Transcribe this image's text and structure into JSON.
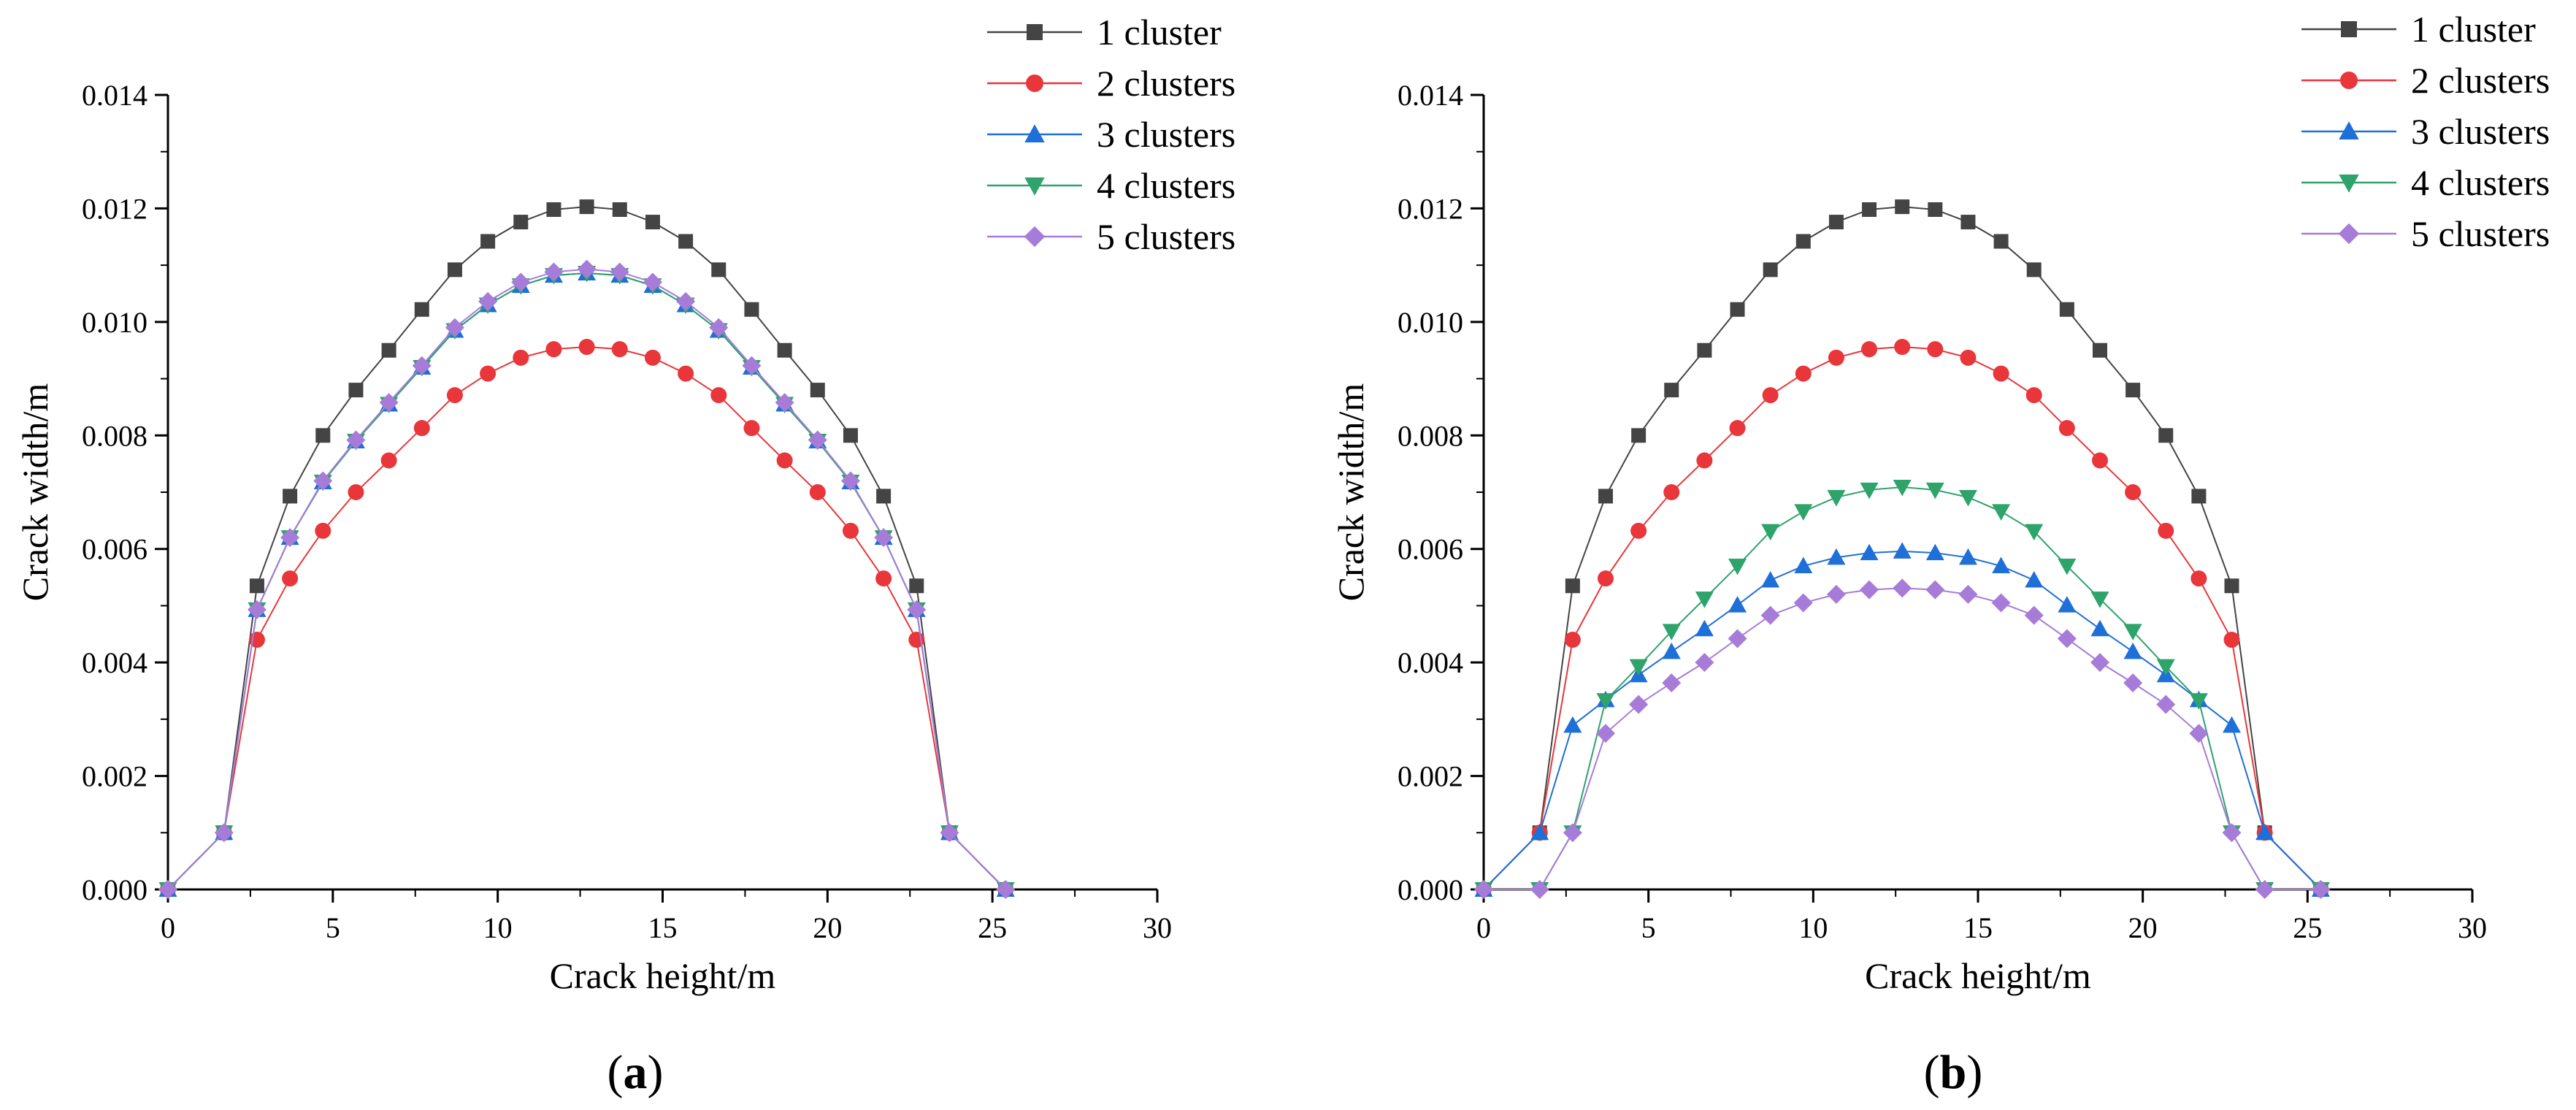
{
  "chart_data": [
    {
      "type": "line",
      "panel_label": "a",
      "xlabel": "Crack height/m",
      "ylabel": "Crack width/m",
      "xlim": [
        0,
        30
      ],
      "ylim": [
        0,
        0.014
      ],
      "x_ticks": [
        "0",
        "5",
        "10",
        "15",
        "20",
        "25",
        "30"
      ],
      "y_ticks": [
        "0.000",
        "0.002",
        "0.004",
        "0.006",
        "0.008",
        "0.010",
        "0.012",
        "0.014"
      ],
      "grid": false,
      "legend_position": "top-right",
      "series": [
        {
          "name": "1 cluster",
          "color": "#444444",
          "marker": "square",
          "x": [
            0,
            1.7,
            2.7,
            3.7,
            4.7,
            5.7,
            6.7,
            7.7,
            8.7,
            9.7,
            10.7,
            11.7,
            12.7,
            13.7,
            14.7,
            15.7,
            16.7,
            17.7,
            18.7,
            19.7,
            20.7,
            21.7,
            22.7,
            23.7,
            25.4
          ],
          "y": [
            0,
            0.001,
            0.00535,
            0.00693,
            0.008,
            0.0088,
            0.0095,
            0.01022,
            0.01092,
            0.01142,
            0.01176,
            0.01198,
            0.01203,
            0.01198,
            0.01176,
            0.01142,
            0.01092,
            0.01022,
            0.0095,
            0.0088,
            0.008,
            0.00693,
            0.00535,
            0.001,
            0
          ]
        },
        {
          "name": "2 clusters",
          "color": "#e8363a",
          "marker": "circle",
          "x": [
            0,
            1.7,
            2.7,
            3.7,
            4.7,
            5.7,
            6.7,
            7.7,
            8.7,
            9.7,
            10.7,
            11.7,
            12.7,
            13.7,
            14.7,
            15.7,
            16.7,
            17.7,
            18.7,
            19.7,
            20.7,
            21.7,
            22.7,
            23.7,
            25.4
          ],
          "y": [
            0,
            0.001,
            0.0044,
            0.00548,
            0.00632,
            0.007,
            0.00756,
            0.00813,
            0.00871,
            0.00909,
            0.00937,
            0.00952,
            0.00956,
            0.00952,
            0.00937,
            0.00909,
            0.00871,
            0.00813,
            0.00756,
            0.007,
            0.00632,
            0.00548,
            0.0044,
            0.001,
            0
          ]
        },
        {
          "name": "3 clusters",
          "color": "#1f6fd8",
          "marker": "triangle-up",
          "x": [
            0,
            1.7,
            2.7,
            3.7,
            4.7,
            5.7,
            6.7,
            7.7,
            8.7,
            9.7,
            10.7,
            11.7,
            12.7,
            13.7,
            14.7,
            15.7,
            16.7,
            17.7,
            18.7,
            19.7,
            20.7,
            21.7,
            22.7,
            23.7,
            25.4
          ],
          "y": [
            0,
            0.001,
            0.00493,
            0.0062,
            0.00718,
            0.0079,
            0.00855,
            0.0092,
            0.00985,
            0.0103,
            0.01064,
            0.01082,
            0.01086,
            0.01082,
            0.01064,
            0.0103,
            0.00985,
            0.0092,
            0.00855,
            0.0079,
            0.00718,
            0.0062,
            0.00493,
            0.001,
            0
          ]
        },
        {
          "name": "4 clusters",
          "color": "#2ea36a",
          "marker": "triangle-down",
          "x": [
            0,
            1.7,
            2.7,
            3.7,
            4.7,
            5.7,
            6.7,
            7.7,
            8.7,
            9.7,
            10.7,
            11.7,
            12.7,
            13.7,
            14.7,
            15.7,
            16.7,
            17.7,
            18.7,
            19.7,
            20.7,
            21.7,
            22.7,
            23.7,
            25.4
          ],
          "y": [
            0,
            0.001,
            0.00493,
            0.0062,
            0.00718,
            0.0079,
            0.00855,
            0.0092,
            0.00985,
            0.0103,
            0.01064,
            0.01082,
            0.01086,
            0.01082,
            0.01064,
            0.0103,
            0.00985,
            0.0092,
            0.00855,
            0.0079,
            0.00718,
            0.0062,
            0.00493,
            0.001,
            0
          ]
        },
        {
          "name": "5 clusters",
          "color": "#a77cd8",
          "marker": "diamond",
          "x": [
            0,
            1.7,
            2.7,
            3.7,
            4.7,
            5.7,
            6.7,
            7.7,
            8.7,
            9.7,
            10.7,
            11.7,
            12.7,
            13.7,
            14.7,
            15.7,
            16.7,
            17.7,
            18.7,
            19.7,
            20.7,
            21.7,
            22.7,
            23.7,
            25.4
          ],
          "y": [
            0,
            0.001,
            0.00493,
            0.0062,
            0.0072,
            0.00792,
            0.00858,
            0.00923,
            0.0099,
            0.01036,
            0.0107,
            0.01088,
            0.01093,
            0.01088,
            0.0107,
            0.01036,
            0.0099,
            0.00923,
            0.00858,
            0.00792,
            0.0072,
            0.0062,
            0.00493,
            0.001,
            0
          ]
        }
      ]
    },
    {
      "type": "line",
      "panel_label": "b",
      "xlabel": "Crack height/m",
      "ylabel": "Crack width/m",
      "xlim": [
        0,
        30
      ],
      "ylim": [
        0,
        0.014
      ],
      "x_ticks": [
        "0",
        "5",
        "10",
        "15",
        "20",
        "25",
        "30"
      ],
      "y_ticks": [
        "0.000",
        "0.002",
        "0.004",
        "0.006",
        "0.008",
        "0.010",
        "0.012",
        "0.014"
      ],
      "grid": false,
      "legend_position": "top-right",
      "series": [
        {
          "name": "1 cluster",
          "color": "#444444",
          "marker": "square",
          "x": [
            0,
            1.7,
            2.7,
            3.7,
            4.7,
            5.7,
            6.7,
            7.7,
            8.7,
            9.7,
            10.7,
            11.7,
            12.7,
            13.7,
            14.7,
            15.7,
            16.7,
            17.7,
            18.7,
            19.7,
            20.7,
            21.7,
            22.7,
            23.7,
            25.4
          ],
          "y": [
            0,
            0.001,
            0.00535,
            0.00693,
            0.008,
            0.0088,
            0.0095,
            0.01022,
            0.01092,
            0.01142,
            0.01176,
            0.01198,
            0.01203,
            0.01198,
            0.01176,
            0.01142,
            0.01092,
            0.01022,
            0.0095,
            0.0088,
            0.008,
            0.00693,
            0.00535,
            0.001,
            0
          ]
        },
        {
          "name": "2 clusters",
          "color": "#e8363a",
          "marker": "circle",
          "x": [
            0,
            1.7,
            2.7,
            3.7,
            4.7,
            5.7,
            6.7,
            7.7,
            8.7,
            9.7,
            10.7,
            11.7,
            12.7,
            13.7,
            14.7,
            15.7,
            16.7,
            17.7,
            18.7,
            19.7,
            20.7,
            21.7,
            22.7,
            23.7,
            25.4
          ],
          "y": [
            0,
            0.001,
            0.0044,
            0.00548,
            0.00632,
            0.007,
            0.00756,
            0.00813,
            0.00871,
            0.00909,
            0.00937,
            0.00952,
            0.00956,
            0.00952,
            0.00937,
            0.00909,
            0.00871,
            0.00813,
            0.00756,
            0.007,
            0.00632,
            0.00548,
            0.0044,
            0.001,
            0
          ]
        },
        {
          "name": "3 clusters",
          "color": "#1f6fd8",
          "marker": "triangle-up",
          "x": [
            0,
            1.7,
            2.7,
            3.7,
            4.7,
            5.7,
            6.7,
            7.7,
            8.7,
            9.7,
            10.7,
            11.7,
            12.7,
            13.7,
            14.7,
            15.7,
            16.7,
            17.7,
            18.7,
            19.7,
            20.7,
            21.7,
            22.7,
            23.7,
            25.4
          ],
          "y": [
            0,
            0.001,
            0.00289,
            0.00334,
            0.00378,
            0.00419,
            0.00459,
            0.00501,
            0.00545,
            0.0057,
            0.00585,
            0.00593,
            0.00596,
            0.00593,
            0.00585,
            0.0057,
            0.00545,
            0.00501,
            0.00459,
            0.00419,
            0.00378,
            0.00334,
            0.00289,
            0.001,
            0
          ]
        },
        {
          "name": "4 clusters",
          "color": "#2ea36a",
          "marker": "triangle-down",
          "x": [
            0,
            1.7,
            2.7,
            3.7,
            4.7,
            5.7,
            6.7,
            7.7,
            8.7,
            9.7,
            10.7,
            11.7,
            12.7,
            13.7,
            14.7,
            15.7,
            16.7,
            17.7,
            18.7,
            19.7,
            20.7,
            21.7,
            22.7,
            23.7,
            25.4
          ],
          "y": [
            0,
            0,
            0.001,
            0.00333,
            0.00393,
            0.00455,
            0.00512,
            0.0057,
            0.00631,
            0.00666,
            0.00691,
            0.00704,
            0.00709,
            0.00704,
            0.00691,
            0.00666,
            0.00631,
            0.0057,
            0.00512,
            0.00455,
            0.00393,
            0.00333,
            0.001,
            0,
            0
          ]
        },
        {
          "name": "5 clusters",
          "color": "#a77cd8",
          "marker": "diamond",
          "x": [
            0,
            1.7,
            2.7,
            3.7,
            4.7,
            5.7,
            6.7,
            7.7,
            8.7,
            9.7,
            10.7,
            11.7,
            12.7,
            13.7,
            14.7,
            15.7,
            16.7,
            17.7,
            18.7,
            19.7,
            20.7,
            21.7,
            22.7,
            23.7,
            25.4
          ],
          "y": [
            0,
            0,
            0.001,
            0.00275,
            0.00326,
            0.00364,
            0.004,
            0.00442,
            0.00483,
            0.00505,
            0.0052,
            0.00528,
            0.00531,
            0.00528,
            0.0052,
            0.00505,
            0.00483,
            0.00442,
            0.004,
            0.00364,
            0.00326,
            0.00275,
            0.001,
            0,
            0
          ]
        }
      ]
    }
  ]
}
